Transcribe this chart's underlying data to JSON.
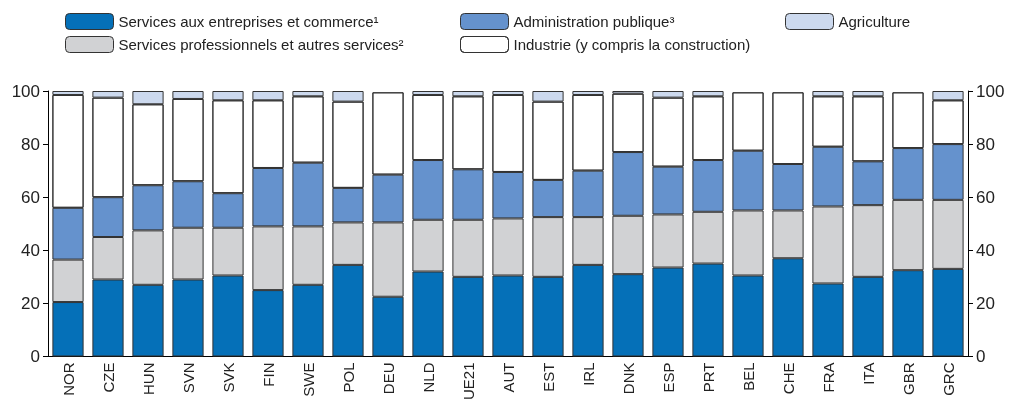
{
  "chart_data": {
    "type": "bar",
    "stacked": true,
    "categories": [
      "NOR",
      "CZE",
      "HUN",
      "SVN",
      "SVK",
      "FIN",
      "SWE",
      "POL",
      "DEU",
      "NLD",
      "UE21",
      "AUT",
      "EST",
      "IRL",
      "DNK",
      "ESP",
      "PRT",
      "BEL",
      "CHE",
      "FRA",
      "ITA",
      "GBR",
      "GRC"
    ],
    "series": [
      {
        "name": "Services aux entreprises et commerce¹",
        "color": "#0570b8",
        "values": [
          20.5,
          29,
          27,
          29,
          30.5,
          25,
          27,
          34.5,
          22.5,
          32,
          30,
          30.5,
          30,
          34.5,
          31,
          33.5,
          35,
          30.5,
          37,
          27.5,
          30,
          32.5,
          33
        ]
      },
      {
        "name": "Services professionnels et autres services²",
        "color": "#d1d2d4",
        "values": [
          16,
          16,
          20.5,
          19.5,
          18,
          24,
          22,
          16,
          28,
          19.5,
          21.5,
          21.5,
          22.5,
          18,
          22,
          20,
          19.5,
          24.5,
          18,
          29,
          27,
          26.5,
          26
        ]
      },
      {
        "name": "Administration publique³",
        "color": "#6592cd",
        "values": [
          19.5,
          15,
          17,
          17.5,
          13,
          22,
          24,
          13,
          18,
          22.5,
          19,
          17.5,
          14,
          17.5,
          24,
          18,
          19.5,
          22.5,
          17.5,
          22.5,
          16.5,
          19.5,
          21
        ]
      },
      {
        "name": "Industrie (y compris la construction)",
        "color": "#ffffff",
        "values": [
          42.5,
          37.5,
          30.5,
          31,
          35,
          25.5,
          25,
          32.5,
          31,
          24.5,
          27.5,
          29,
          29.5,
          28.5,
          22,
          26,
          24,
          22,
          27,
          19,
          24.5,
          21,
          16.5
        ]
      },
      {
        "name": "Agriculture",
        "color": "#ccd9ee",
        "values": [
          1.5,
          2.5,
          5,
          3,
          3.5,
          3.5,
          2,
          4,
          null,
          1.5,
          2,
          1.5,
          4,
          1.5,
          1,
          2.5,
          2,
          null,
          null,
          2,
          2,
          null,
          3.5
        ]
      }
    ],
    "ylim": [
      0,
      100
    ],
    "yticks": [
      0,
      20,
      40,
      60,
      80,
      100
    ],
    "y2lim": [
      0,
      100
    ],
    "y2ticks": [
      0,
      20,
      40,
      60,
      80,
      100
    ],
    "grid": false,
    "legend": "top"
  }
}
